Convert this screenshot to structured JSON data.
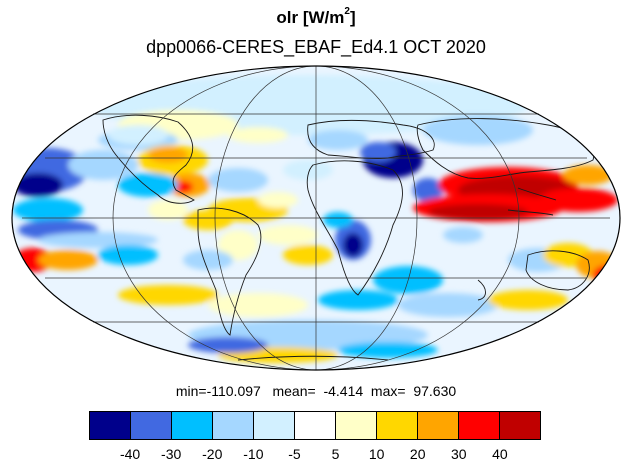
{
  "title": {
    "variable": "olr",
    "units_base": "[W/m",
    "units_exp": "2",
    "units_close": "]",
    "main": "dpp0066-CERES_EBAF_Ed4.1  OCT 2020"
  },
  "stats": {
    "text": "min=-110.097   mean=  -4.414  max=  97.630"
  },
  "colorbar": {
    "colors": [
      "#00008b",
      "#4169e1",
      "#00bfff",
      "#a5d7ff",
      "#d2f0ff",
      "#ffffff",
      "#ffffc8",
      "#ffd700",
      "#ffa500",
      "#ff0000",
      "#c00000"
    ],
    "tick_labels": [
      "-40",
      "-30",
      "-20",
      "-10",
      "-5",
      "5",
      "10",
      "20",
      "30",
      "40"
    ]
  },
  "map": {
    "projection": "Mollweide",
    "grid_lines": true,
    "coastlines": true,
    "regions_colored": [
      {
        "name": "indian-ocean-maritime-continent",
        "color": "#d00000"
      },
      {
        "name": "tropical-atlantic",
        "color": "#ffd700"
      },
      {
        "name": "central-africa",
        "color": "#00008b"
      },
      {
        "name": "caribbean",
        "color": "#ff8c00"
      },
      {
        "name": "north-africa",
        "color": "#00008b"
      }
    ]
  }
}
